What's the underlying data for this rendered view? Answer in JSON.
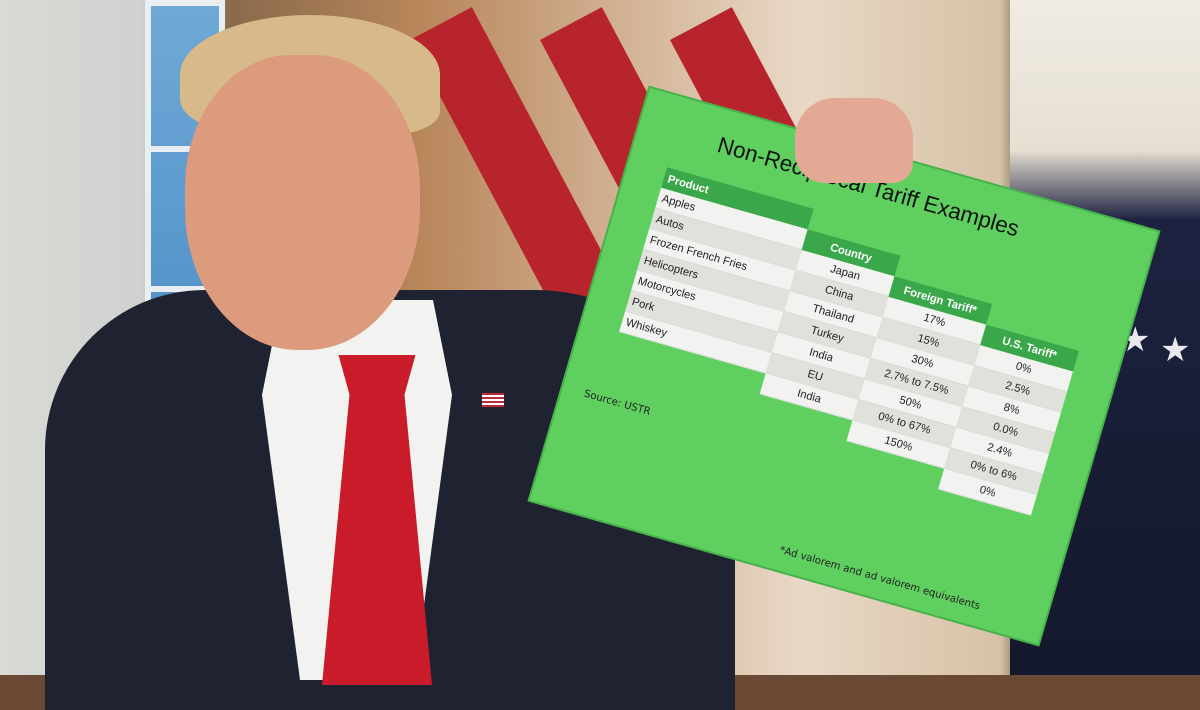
{
  "sign": {
    "title": "Non-Reciprocal Tariff Examples",
    "headers": [
      "Product",
      "Country",
      "Foreign Tariff*",
      "U.S. Tariff*"
    ],
    "rows": [
      {
        "product": "Apples",
        "country": "Japan",
        "foreign": "17%",
        "us": "0%"
      },
      {
        "product": "Autos",
        "country": "China",
        "foreign": "15%",
        "us": "2.5%"
      },
      {
        "product": "Frozen French Fries",
        "country": "Thailand",
        "foreign": "30%",
        "us": "8%"
      },
      {
        "product": "Helicopters",
        "country": "Turkey",
        "foreign": "2.7% to 7.5%",
        "us": "0.0%"
      },
      {
        "product": "Motorcycles",
        "country": "India",
        "foreign": "50%",
        "us": "2.4%"
      },
      {
        "product": "Pork",
        "country": "EU",
        "foreign": "0% to 67%",
        "us": "0% to 6%"
      },
      {
        "product": "Whiskey",
        "country": "India",
        "foreign": "150%",
        "us": "0%"
      }
    ],
    "source": "Source: USTR",
    "footnote": "*Ad valorem and ad valorem equivalents",
    "colors": {
      "board": "#5fd060",
      "header": "#3aa84a"
    }
  }
}
